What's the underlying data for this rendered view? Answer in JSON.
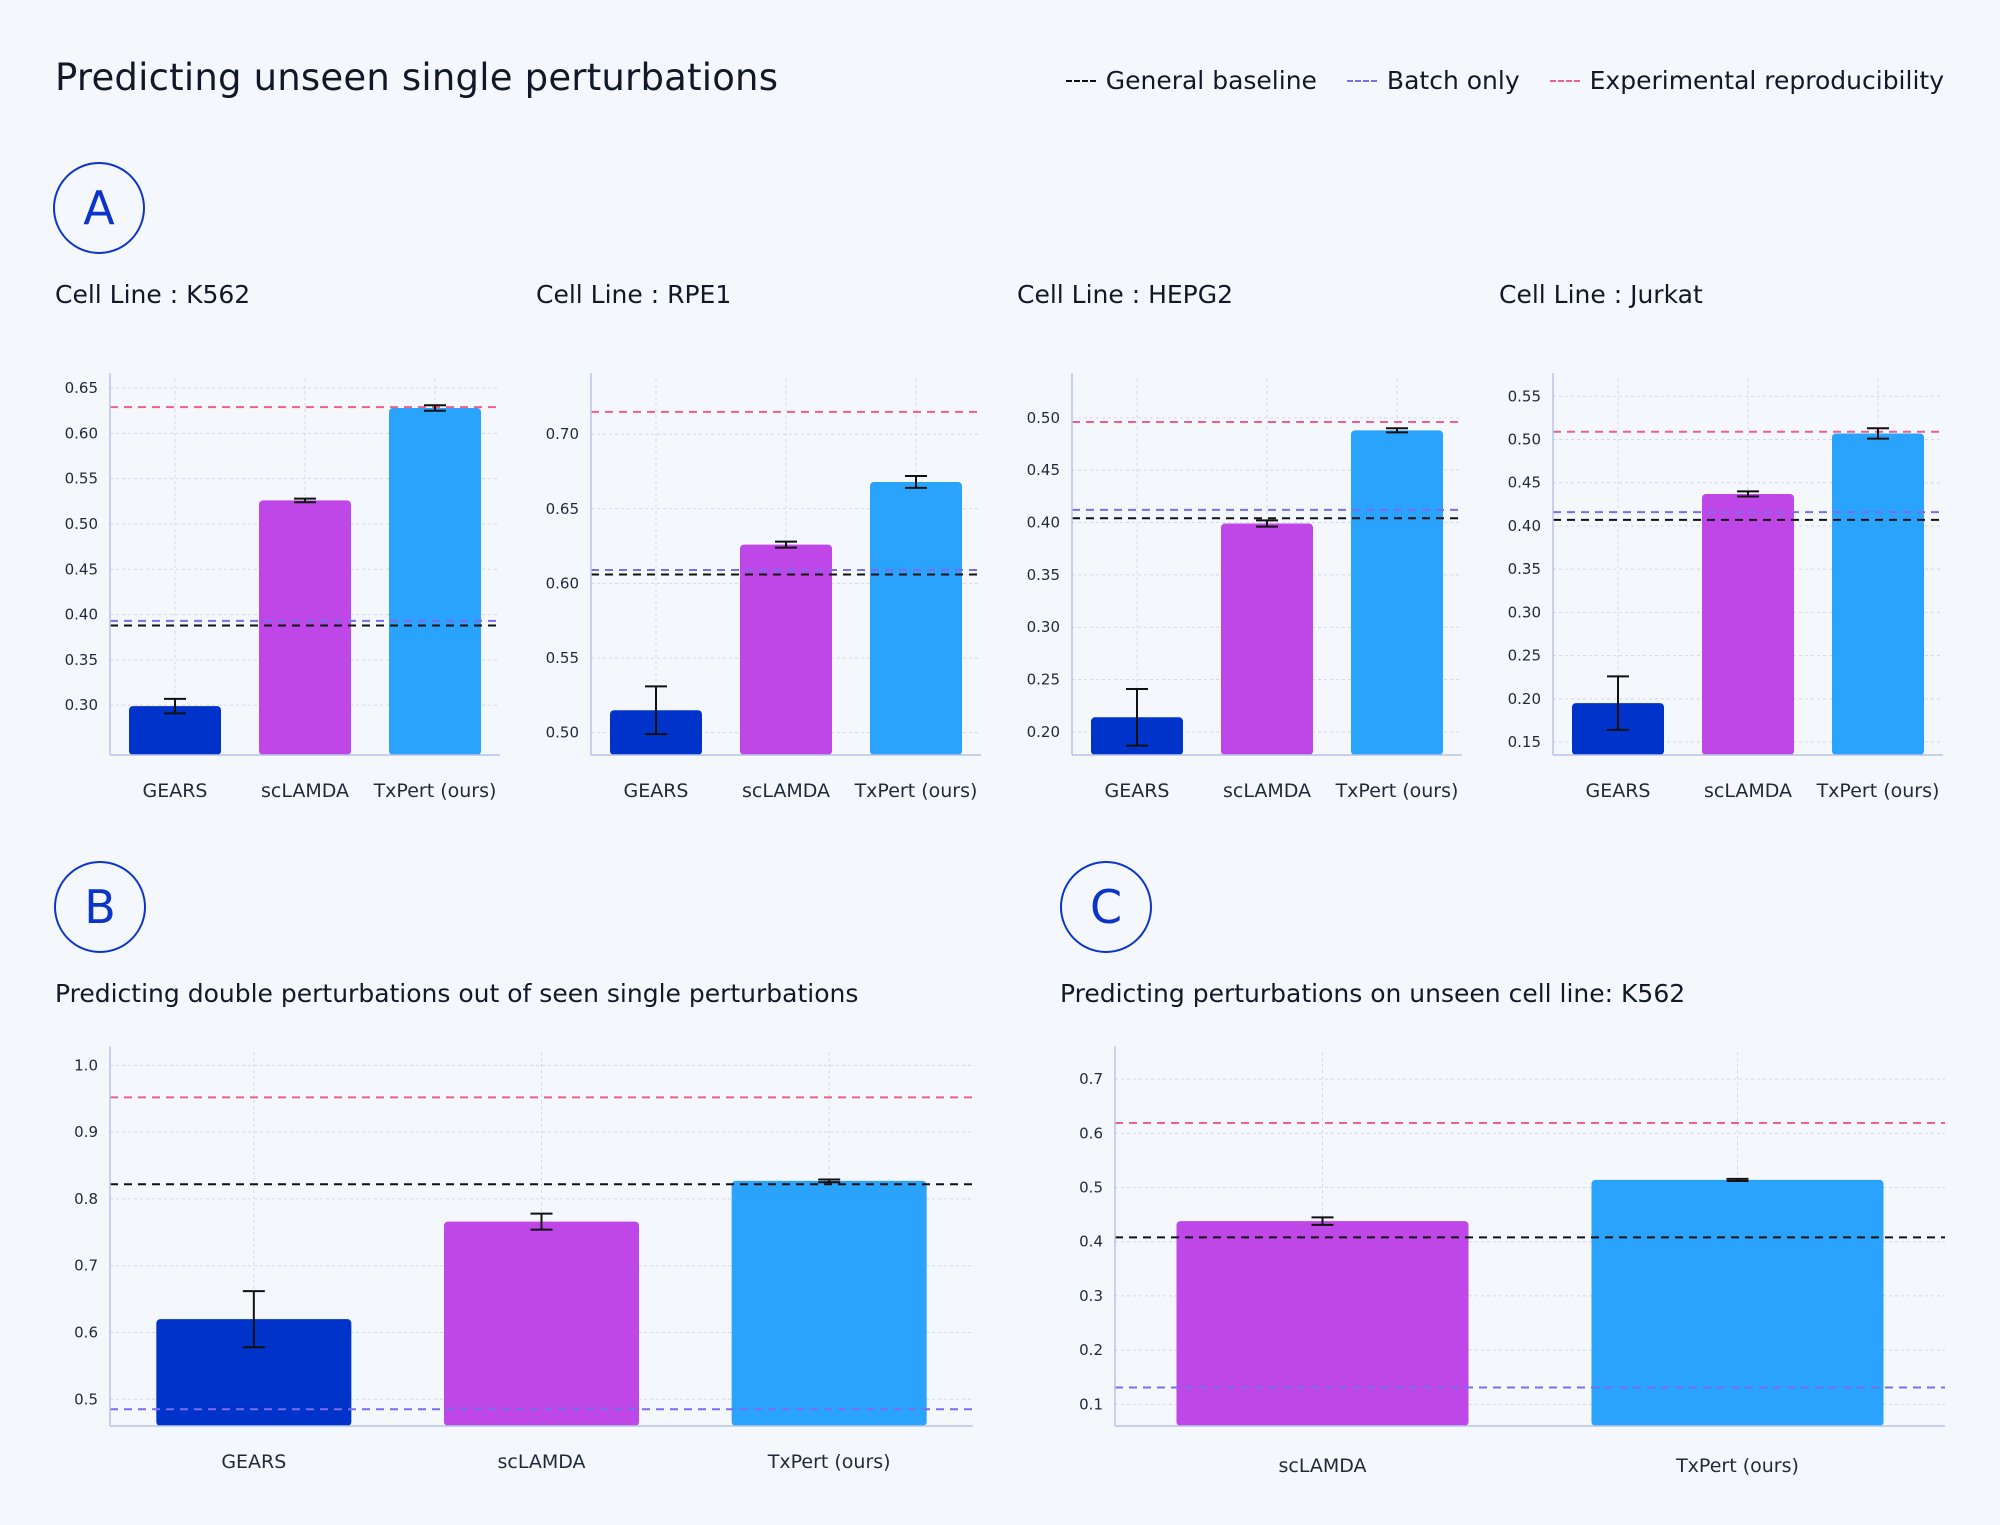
{
  "page": {
    "title": "Predicting unseen single perturbations",
    "legend": [
      {
        "label": "General baseline",
        "color": "#111111"
      },
      {
        "label": "Batch only",
        "color": "#7b6cf0"
      },
      {
        "label": "Experimental reproducibility",
        "color": "#ef5f8a"
      }
    ],
    "section_labels": {
      "a": "A",
      "b": "B",
      "c": "C"
    }
  },
  "colors": {
    "GEARS": "#0033c9",
    "scLAMDA": "#bf47e8",
    "TxPert (ours)": "#29a3fb",
    "general_baseline": "#111111",
    "batch_only": "#7b6cf0",
    "experimental_reproducibility": "#ef5f8a",
    "axis": "#b8c3e6",
    "grid": "#d2d9ea"
  },
  "chart_data": [
    {
      "type": "bar",
      "title": "Cell Line : K562",
      "categories": [
        "GEARS",
        "scLAMDA",
        "TxPert (ours)"
      ],
      "values": [
        0.299,
        0.526,
        0.628
      ],
      "errors": [
        0.008,
        0.002,
        0.003
      ],
      "ylim": [
        0.245,
        0.66
      ],
      "yticks": [
        0.3,
        0.35,
        0.4,
        0.45,
        0.5,
        0.55,
        0.6,
        0.65
      ],
      "tick_decimals": 2,
      "reference_lines": {
        "general_baseline": 0.388,
        "batch_only": 0.393,
        "experimental_reproducibility": 0.629
      },
      "grid": true
    },
    {
      "type": "bar",
      "title": "Cell Line : RPE1",
      "categories": [
        "GEARS",
        "scLAMDA",
        "TxPert (ours)"
      ],
      "values": [
        0.515,
        0.626,
        0.668
      ],
      "errors": [
        0.016,
        0.002,
        0.004
      ],
      "ylim": [
        0.485,
        0.737
      ],
      "yticks": [
        0.5,
        0.55,
        0.6,
        0.65,
        0.7
      ],
      "tick_decimals": 2,
      "reference_lines": {
        "general_baseline": 0.606,
        "batch_only": 0.609,
        "experimental_reproducibility": 0.715
      },
      "grid": true
    },
    {
      "type": "bar",
      "title": "Cell Line : HEPG2",
      "categories": [
        "GEARS",
        "scLAMDA",
        "TxPert (ours)"
      ],
      "values": [
        0.214,
        0.399,
        0.488
      ],
      "errors": [
        0.027,
        0.003,
        0.002
      ],
      "ylim": [
        0.178,
        0.537
      ],
      "yticks": [
        0.2,
        0.25,
        0.3,
        0.35,
        0.4,
        0.45,
        0.5
      ],
      "tick_decimals": 2,
      "reference_lines": {
        "general_baseline": 0.404,
        "batch_only": 0.412,
        "experimental_reproducibility": 0.496
      },
      "grid": true
    },
    {
      "type": "bar",
      "title": "Cell Line : Jurkat",
      "categories": [
        "GEARS",
        "scLAMDA",
        "TxPert (ours)"
      ],
      "values": [
        0.195,
        0.437,
        0.507
      ],
      "errors": [
        0.031,
        0.003,
        0.006
      ],
      "ylim": [
        0.135,
        0.57
      ],
      "yticks": [
        0.15,
        0.2,
        0.25,
        0.3,
        0.35,
        0.4,
        0.45,
        0.5,
        0.55
      ],
      "tick_decimals": 2,
      "reference_lines": {
        "general_baseline": 0.407,
        "batch_only": 0.416,
        "experimental_reproducibility": 0.509
      },
      "grid": true
    },
    {
      "type": "bar",
      "title": "Predicting double perturbations out of seen single perturbations",
      "categories": [
        "GEARS",
        "scLAMDA",
        "TxPert (ours)"
      ],
      "values": [
        0.62,
        0.766,
        0.827
      ],
      "errors": [
        0.042,
        0.012,
        0.002
      ],
      "ylim": [
        0.46,
        1.02
      ],
      "yticks": [
        0.5,
        0.6,
        0.7,
        0.8,
        0.9,
        1.0
      ],
      "tick_decimals": 1,
      "reference_lines": {
        "general_baseline": 0.822,
        "batch_only": 0.485,
        "experimental_reproducibility": 0.952
      },
      "grid": true
    },
    {
      "type": "bar",
      "title": "Predicting perturbations on unseen cell line: K562",
      "categories": [
        "scLAMDA",
        "TxPert (ours)"
      ],
      "values": [
        0.438,
        0.514
      ],
      "errors": [
        0.007,
        0.002
      ],
      "ylim": [
        0.06,
        0.75
      ],
      "yticks": [
        0.1,
        0.2,
        0.3,
        0.4,
        0.5,
        0.6,
        0.7
      ],
      "tick_decimals": 1,
      "reference_lines": {
        "general_baseline": 0.408,
        "batch_only": 0.131,
        "experimental_reproducibility": 0.619
      },
      "grid": true
    }
  ]
}
